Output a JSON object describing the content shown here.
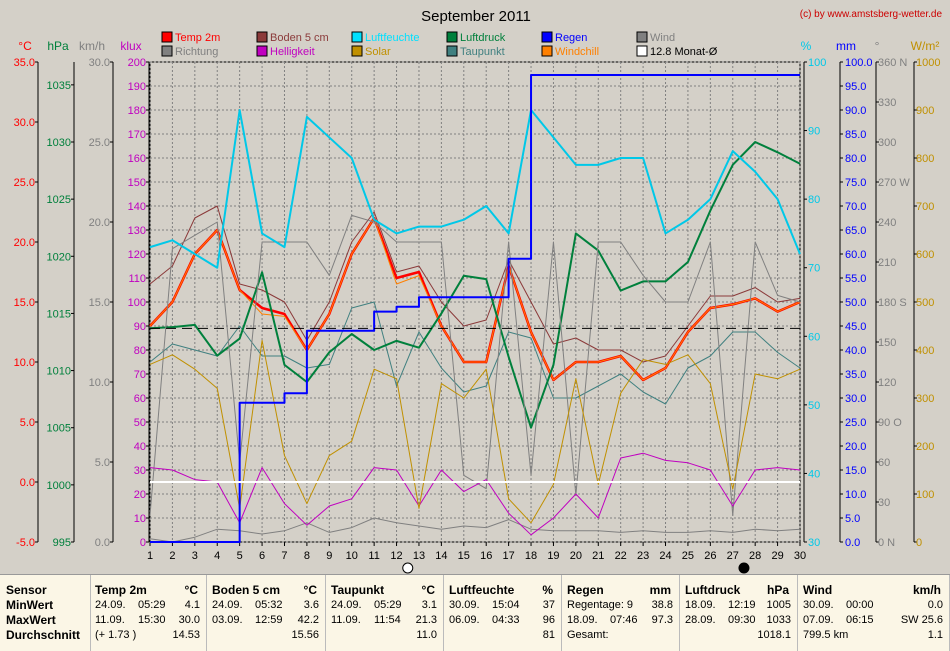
{
  "title": "September 2011",
  "credit": "(c) by www.amstsberg-wetter.de",
  "legend": [
    {
      "label": "Temp 2m",
      "color": "#ff0000"
    },
    {
      "label": "Boden 5 cm",
      "color": "#8b3a3a"
    },
    {
      "label": "Luftfeuchte",
      "color": "#00e0ff"
    },
    {
      "label": "Luftdruck",
      "color": "#00803c"
    },
    {
      "label": "Regen",
      "color": "#0000ff"
    },
    {
      "label": "Wind",
      "color": "#808080"
    },
    {
      "label": "Richtung",
      "color": "#808080"
    },
    {
      "label": "Helligkeit",
      "color": "#c000c0"
    },
    {
      "label": "Solar",
      "color": "#c09000"
    },
    {
      "label": "Taupunkt",
      "color": "#408080"
    },
    {
      "label": "Windchill",
      "color": "#ff8000"
    },
    {
      "label": "12.8 Monat-Ø",
      "color": "#ffffff"
    }
  ],
  "axis_titles": {
    "temp": "°C",
    "hpa": "hPa",
    "kmh": "km/h",
    "klux": "klux",
    "pct": "%",
    "mm": "mm",
    "deg": "°",
    "wm2": "W/m²"
  },
  "chart_data": {
    "type": "line",
    "x": [
      1,
      2,
      3,
      4,
      5,
      6,
      7,
      8,
      9,
      10,
      11,
      12,
      13,
      14,
      15,
      16,
      17,
      18,
      19,
      20,
      21,
      22,
      23,
      24,
      25,
      26,
      27,
      28,
      29,
      30
    ],
    "xlim": [
      1,
      30
    ],
    "axes": {
      "temp": {
        "label": "°C",
        "range": [
          -5,
          35
        ],
        "ticks": [
          "35.0",
          "30.0",
          "25.0",
          "20.0",
          "15.0",
          "10.0",
          "5.0",
          "0.0",
          "-5.0"
        ]
      },
      "hpa": {
        "label": "hPa",
        "range": [
          995,
          1037
        ],
        "ticks": [
          "1035",
          "1030",
          "1025",
          "1020",
          "1015",
          "1010",
          "1005",
          "1000",
          "995"
        ]
      },
      "kmh": {
        "label": "km/h",
        "range": [
          0,
          30
        ],
        "ticks": [
          "30.0",
          "25.0",
          "20.0",
          "15.0",
          "10.0",
          "5.0",
          "0.0"
        ]
      },
      "klux": {
        "label": "klux",
        "range": [
          0,
          200
        ],
        "ticks": [
          "200",
          "190",
          "180",
          "170",
          "160",
          "150",
          "140",
          "130",
          "120",
          "110",
          "100",
          "90",
          "80",
          "70",
          "60",
          "50",
          "40",
          "30",
          "20",
          "10",
          "0"
        ]
      },
      "pct": {
        "label": "%",
        "range": [
          30,
          100
        ],
        "ticks": [
          "100",
          "90",
          "80",
          "70",
          "60",
          "50",
          "40",
          "30"
        ]
      },
      "mm": {
        "label": "mm",
        "range": [
          0,
          100
        ],
        "ticks": [
          "100.0",
          "95.0",
          "90.0",
          "85.0",
          "80.0",
          "75.0",
          "70.0",
          "65.0",
          "60.0",
          "55.0",
          "50.0",
          "45.0",
          "40.0",
          "35.0",
          "30.0",
          "25.0",
          "20.0",
          "15.0",
          "10.0",
          "5.0",
          "0.0"
        ]
      },
      "deg": {
        "label": "°",
        "range": [
          0,
          360
        ],
        "ticks": [
          "360 N",
          "330",
          "300",
          "270 W",
          "240",
          "210",
          "180 S",
          "150",
          "120",
          "90 O",
          "60",
          "30",
          "0 N"
        ]
      },
      "wm2": {
        "label": "W/m²",
        "range": [
          0,
          1000
        ],
        "ticks": [
          "1000",
          "900",
          "800",
          "700",
          "600",
          "500",
          "400",
          "300",
          "200",
          "100",
          "0"
        ]
      }
    },
    "series": [
      {
        "name": "Temp 2m",
        "axis": "temp",
        "color": "#ff0000",
        "width": 2.5,
        "values": [
          13.0,
          15.0,
          19.0,
          21.0,
          16.0,
          14.5,
          14.0,
          11.0,
          14.0,
          19.0,
          22.0,
          17.0,
          17.5,
          13.0,
          10.0,
          10.0,
          18.0,
          12.5,
          8.5,
          10.0,
          10.0,
          10.5,
          8.5,
          9.5,
          12.5,
          14.5,
          14.8,
          15.3,
          14.2,
          15.0
        ]
      },
      {
        "name": "Boden 5 cm",
        "axis": "temp",
        "color": "#8b3a3a",
        "width": 1,
        "values": [
          16.5,
          18.0,
          22.0,
          23.0,
          16.5,
          16.0,
          15.0,
          11.8,
          15.0,
          20.0,
          22.5,
          17.5,
          18.0,
          15.0,
          13.0,
          13.5,
          18.5,
          15.0,
          11.5,
          12.0,
          11.0,
          11.0,
          10.0,
          10.5,
          13.0,
          15.5,
          15.5,
          16.2,
          15.0,
          15.3
        ]
      },
      {
        "name": "Windchill",
        "axis": "temp",
        "color": "#ff8000",
        "width": 1,
        "values": [
          13.0,
          15.0,
          19.0,
          21.0,
          16.0,
          14.0,
          13.8,
          11.0,
          14.0,
          19.0,
          22.0,
          16.5,
          17.2,
          13.0,
          10.0,
          10.0,
          18.0,
          12.5,
          8.5,
          10.0,
          10.0,
          10.5,
          8.5,
          9.5,
          12.5,
          14.5,
          14.8,
          15.3,
          14.2,
          15.0
        ]
      },
      {
        "name": "Taupunkt",
        "axis": "temp",
        "color": "#408080",
        "width": 1,
        "values": [
          10.0,
          11.5,
          11.0,
          10.5,
          13.0,
          10.5,
          10.5,
          9.5,
          9.8,
          14.5,
          15.0,
          8.0,
          12.5,
          9.5,
          7.5,
          8.0,
          12.5,
          12.0,
          7.0,
          7.0,
          8.0,
          9.0,
          7.5,
          6.5,
          9.5,
          10.5,
          12.5,
          12.5,
          10.8,
          9.5
        ]
      },
      {
        "name": "Luftdruck",
        "axis": "hpa",
        "color": "#00803c",
        "width": 2,
        "values": [
          1013.7,
          1013.8,
          1014.0,
          1011.3,
          1012.8,
          1018.6,
          1010.5,
          1009.0,
          1011.6,
          1013.2,
          1011.8,
          1012.6,
          1012.0,
          1015.0,
          1018.3,
          1018.0,
          1011.2,
          1005.0,
          1010.5,
          1022.0,
          1020.5,
          1017.0,
          1017.8,
          1017.8,
          1019.5,
          1024.0,
          1028.0,
          1030.0,
          1029.1,
          1028.1
        ]
      },
      {
        "name": "Wind",
        "axis": "kmh",
        "color": "#808080",
        "width": 1,
        "values": [
          0.2,
          0.0,
          0.3,
          0.8,
          0.7,
          0.5,
          0.7,
          1.2,
          0.6,
          0.9,
          1.5,
          1.2,
          1.0,
          0.8,
          1.0,
          0.9,
          1.4,
          0.8,
          0.7,
          0.7,
          0.7,
          0.6,
          0.7,
          0.6,
          0.6,
          0.7,
          0.6,
          0.8,
          0.7,
          0.8
        ]
      },
      {
        "name": "Richtung",
        "axis": "deg",
        "color": "#808080",
        "width": 1,
        "values": [
          20,
          220,
          230,
          240,
          60,
          225,
          225,
          225,
          200,
          245,
          240,
          225,
          225,
          225,
          50,
          40,
          225,
          50,
          225,
          35,
          225,
          225,
          200,
          180,
          180,
          225,
          20,
          225,
          185,
          180
        ]
      },
      {
        "name": "Helligkeit",
        "axis": "klux",
        "color": "#c000c0",
        "width": 1,
        "values": [
          31,
          30,
          26,
          25,
          8,
          31,
          16,
          7,
          15,
          18,
          31,
          30,
          15,
          30,
          21,
          26,
          12,
          3,
          10,
          20,
          10,
          35,
          37,
          34,
          33,
          30,
          15,
          30,
          31,
          30
        ]
      },
      {
        "name": "Solar",
        "axis": "wm2",
        "color": "#c09000",
        "width": 1,
        "values": [
          370,
          390,
          360,
          320,
          70,
          420,
          180,
          80,
          180,
          210,
          360,
          340,
          70,
          330,
          300,
          360,
          90,
          40,
          120,
          340,
          120,
          310,
          380,
          370,
          390,
          330,
          110,
          350,
          340,
          360
        ]
      },
      {
        "name": "Luftfeuchte",
        "axis": "pct",
        "color": "#00c8e8",
        "width": 2,
        "values": [
          73,
          74,
          72,
          70,
          93,
          75,
          73,
          92,
          89,
          86,
          77,
          75,
          76,
          76,
          77,
          79,
          75,
          93,
          89,
          85,
          85,
          86,
          86,
          75,
          77,
          80,
          87,
          84,
          80,
          72
        ]
      },
      {
        "name": "Regen",
        "axis": "mm",
        "color": "#0000ff",
        "width": 2,
        "step": true,
        "values": [
          0,
          0,
          0,
          0,
          29,
          29,
          31,
          44,
          44,
          44,
          48,
          49,
          51,
          51,
          51,
          51,
          59,
          97.3,
          97.3,
          97.3,
          97.3,
          97.3,
          97.3,
          97.3,
          97.3,
          97.3,
          97.3,
          97.3,
          97.3,
          97.3
        ]
      },
      {
        "name": "12.8 Monat-Ø",
        "axis": "temp",
        "color": "#000000",
        "width": 1,
        "dashed": true,
        "constant": 12.8
      },
      {
        "name": "zero-line",
        "axis": "temp",
        "color": "#ffffff",
        "width": 2,
        "constant": 0.0
      }
    ],
    "moon_markers": [
      {
        "day": 12.5,
        "phase": "full"
      },
      {
        "day": 27.5,
        "phase": "new"
      }
    ]
  },
  "summary": {
    "row_labels": [
      "Sensor",
      "MinWert",
      "MaxWert",
      "Durchschnitt"
    ],
    "columns": [
      {
        "name": "Temp 2m",
        "unit": "°C",
        "rows": [
          [
            "24.09.",
            "05:29",
            "4.1"
          ],
          [
            "11.09.",
            "15:30",
            "30.0"
          ],
          [
            "(+ 1.73 )",
            "",
            "14.53"
          ]
        ]
      },
      {
        "name": "Boden 5 cm",
        "unit": "°C",
        "rows": [
          [
            "24.09.",
            "05:32",
            "3.6"
          ],
          [
            "03.09.",
            "12:59",
            "42.2"
          ],
          [
            "",
            "",
            "15.56"
          ]
        ]
      },
      {
        "name": "Taupunkt",
        "unit": "°C",
        "rows": [
          [
            "24.09.",
            "05:29",
            "3.1"
          ],
          [
            "11.09.",
            "11:54",
            "21.3"
          ],
          [
            "",
            "",
            "11.0"
          ]
        ]
      },
      {
        "name": "Luftfeuchte",
        "unit": "%",
        "rows": [
          [
            "30.09.",
            "15:04",
            "37"
          ],
          [
            "06.09.",
            "04:33",
            "96"
          ],
          [
            "",
            "",
            "81"
          ]
        ]
      },
      {
        "name": "Regen",
        "unit": "mm",
        "rows": [
          [
            "Regentage: 9",
            "",
            "38.8"
          ],
          [
            "18.09.",
            "07:46",
            "97.3"
          ],
          [
            "Gesamt:",
            "",
            ""
          ]
        ]
      },
      {
        "name": "Luftdruck",
        "unit": "hPa",
        "rows": [
          [
            "18.09.",
            "12:19",
            "1005"
          ],
          [
            "28.09.",
            "09:30",
            "1033"
          ],
          [
            "",
            "",
            "1018.1"
          ]
        ]
      },
      {
        "name": "Wind",
        "unit": "km/h",
        "rows": [
          [
            "30.09.",
            "00:00",
            "0.0"
          ],
          [
            "07.09.",
            "06:15",
            "SW 25.6"
          ],
          [
            "799.5 km",
            "",
            "1.1"
          ]
        ]
      }
    ]
  }
}
